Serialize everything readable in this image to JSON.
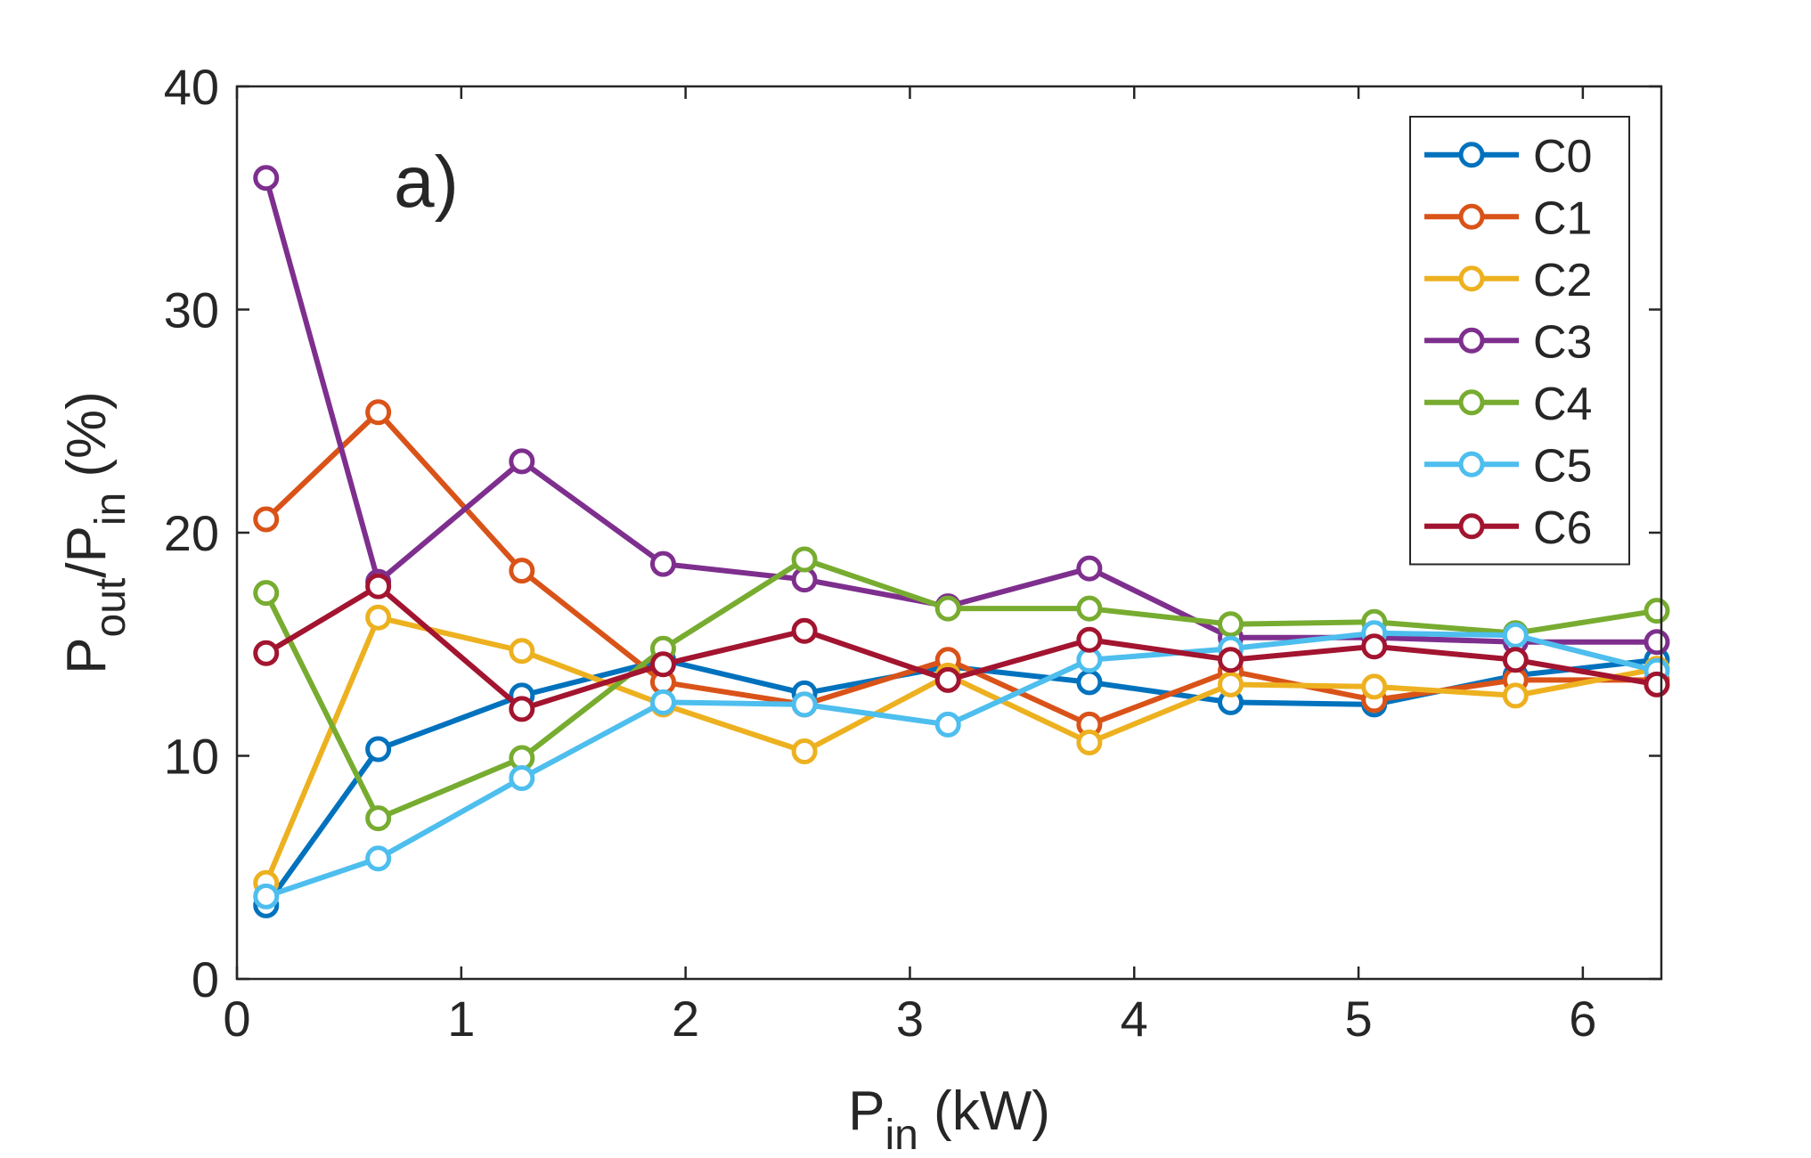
{
  "chart_data": {
    "type": "line",
    "panel_label": "a)",
    "xlabel": {
      "main": "P",
      "sub": "in",
      "rest": " (kW)"
    },
    "ylabel": {
      "p1": "P",
      "s1": "out",
      "p2": "/P",
      "s2": "in",
      "rest": " (%)"
    },
    "xlim": [
      0,
      6.35
    ],
    "ylim": [
      0,
      40
    ],
    "xticks": [
      0,
      1,
      2,
      3,
      4,
      5,
      6
    ],
    "yticks": [
      0,
      10,
      20,
      30,
      40
    ],
    "x": [
      0.13,
      0.63,
      1.27,
      1.9,
      2.53,
      3.17,
      3.8,
      4.43,
      5.07,
      5.7,
      6.33
    ],
    "legend_position": "top-right",
    "series": [
      {
        "name": "C0",
        "color": "#0072BD",
        "values": [
          3.3,
          10.3,
          12.7,
          14.3,
          12.8,
          14.0,
          13.3,
          12.4,
          12.3,
          13.6,
          14.3
        ]
      },
      {
        "name": "C1",
        "color": "#D95319",
        "values": [
          20.6,
          25.4,
          18.3,
          13.3,
          12.3,
          14.3,
          11.4,
          13.8,
          12.5,
          13.4,
          13.4
        ]
      },
      {
        "name": "C2",
        "color": "#EDB120",
        "values": [
          4.3,
          16.2,
          14.7,
          12.3,
          10.2,
          13.6,
          10.6,
          13.2,
          13.1,
          12.7,
          13.9
        ]
      },
      {
        "name": "C3",
        "color": "#7E2F8E",
        "values": [
          35.9,
          17.8,
          23.2,
          18.6,
          17.9,
          16.7,
          18.4,
          15.3,
          15.3,
          15.1,
          15.1
        ]
      },
      {
        "name": "C4",
        "color": "#77AC30",
        "values": [
          17.3,
          7.2,
          9.9,
          14.8,
          18.8,
          16.6,
          16.6,
          15.9,
          16.0,
          15.5,
          16.5
        ]
      },
      {
        "name": "C5",
        "color": "#4DBEEE",
        "values": [
          3.7,
          5.4,
          9.0,
          12.4,
          12.3,
          11.4,
          14.3,
          14.8,
          15.5,
          15.4,
          13.8
        ]
      },
      {
        "name": "C6",
        "color": "#A2142F",
        "values": [
          14.6,
          17.6,
          12.1,
          14.1,
          15.6,
          13.4,
          15.2,
          14.3,
          14.9,
          14.3,
          13.2
        ]
      }
    ]
  }
}
